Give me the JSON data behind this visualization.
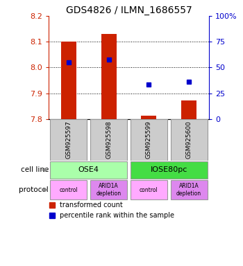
{
  "title": "GDS4826 / ILMN_1686557",
  "samples": [
    "GSM925597",
    "GSM925598",
    "GSM925599",
    "GSM925600"
  ],
  "bar_baseline": 7.8,
  "bar_tops": [
    8.1,
    8.13,
    7.812,
    7.873
  ],
  "blue_y": [
    8.02,
    8.03,
    7.934,
    7.944
  ],
  "ylim": [
    7.8,
    8.2
  ],
  "yticks_left": [
    7.8,
    7.9,
    8.0,
    8.1,
    8.2
  ],
  "yticks_right": [
    0,
    25,
    50,
    75,
    100
  ],
  "yticks_right_labels": [
    "0",
    "25",
    "50",
    "75",
    "100%"
  ],
  "bar_color": "#cc2200",
  "blue_color": "#0000cc",
  "cell_line_groups": [
    {
      "label": "OSE4",
      "color": "#aaffaa"
    },
    {
      "label": "IOSE80pc",
      "color": "#44dd44"
    }
  ],
  "protocols": [
    "control",
    "ARID1A\ndepletion",
    "control",
    "ARID1A\ndepletion"
  ],
  "protocol_color_control": "#ffaaff",
  "protocol_color_arid1a": "#dd88ee",
  "gsm_box_color": "#cccccc",
  "left_label_color": "#cc2200",
  "right_label_color": "#0000cc",
  "legend_red_label": "transformed count",
  "legend_blue_label": "percentile rank within the sample",
  "arrow_color": "#888888"
}
